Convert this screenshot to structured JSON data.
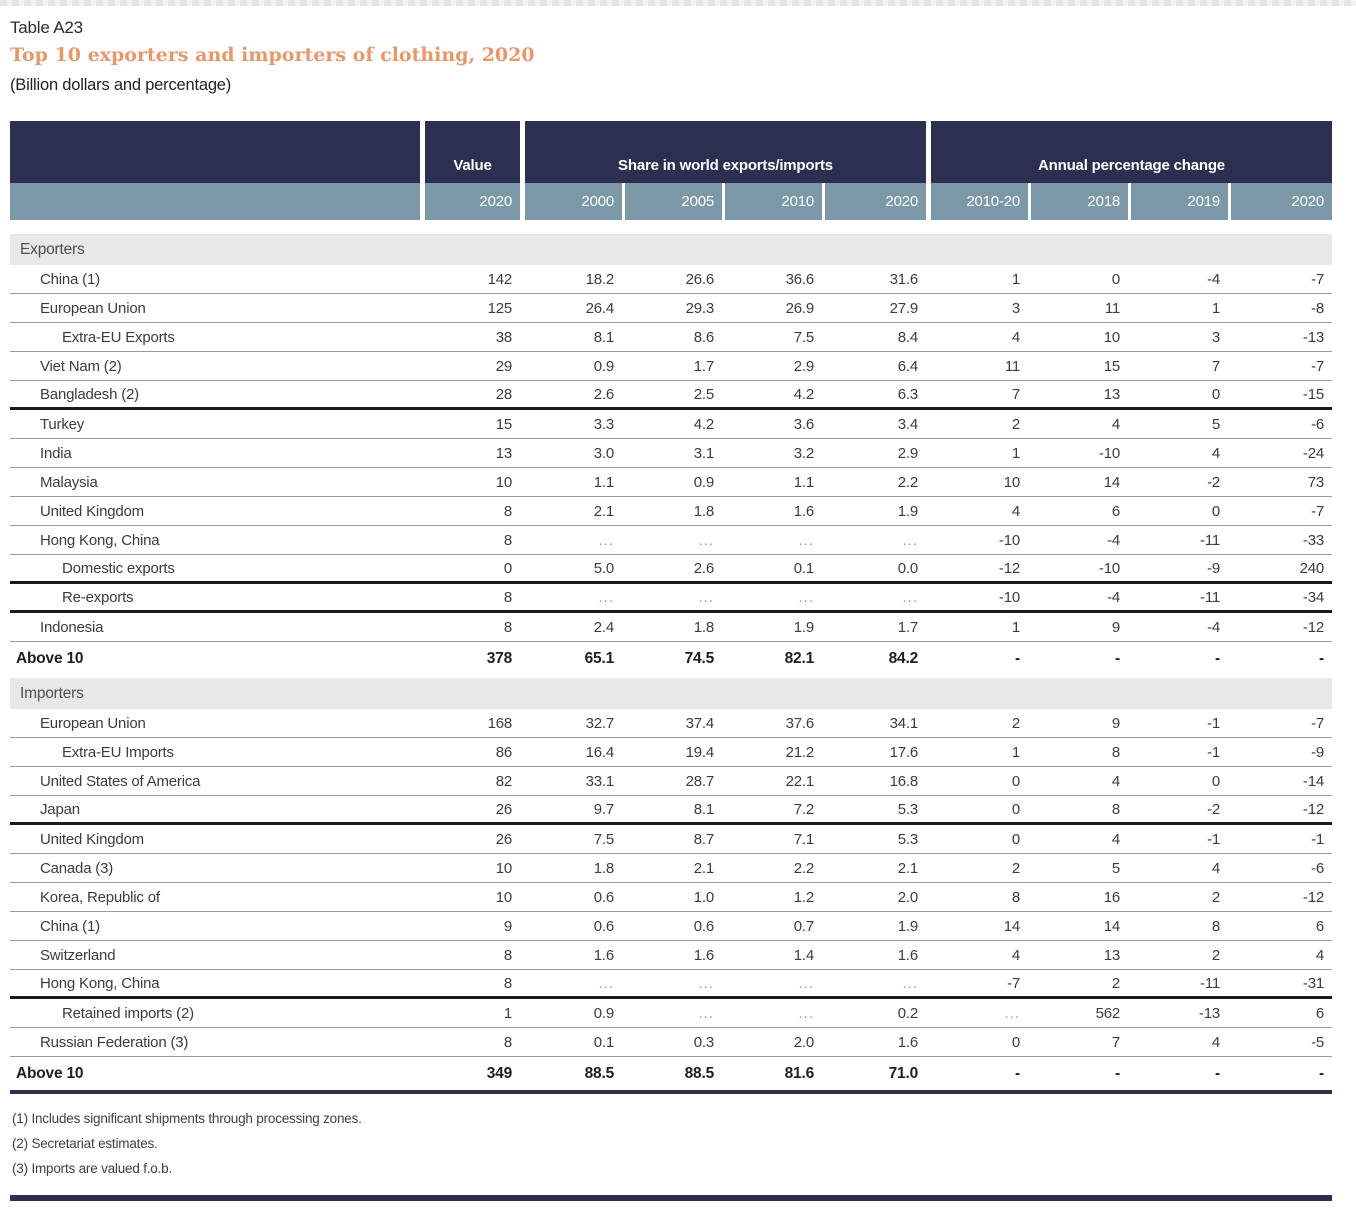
{
  "page": {
    "table_label": "Table A23",
    "title": "Top 10 exporters and importers of clothing, 2020",
    "subtitle": "(Billion dollars and percentage)"
  },
  "colors": {
    "header_navy": "#2c2f50",
    "year_band_blue": "#7c98a6",
    "title_orange": "#e6986d",
    "section_bar_gray": "#e8e8e8"
  },
  "table": {
    "header": {
      "value_label": "Value",
      "share_label": "Share in world exports/imports",
      "annual_label": "Annual percentage change",
      "value_year": "2020",
      "share_years": [
        "2000",
        "2005",
        "2010",
        "2020"
      ],
      "annual_years": [
        "2010-20",
        "2018",
        "2019",
        "2020"
      ]
    },
    "sections": [
      {
        "name": "Exporters",
        "rows": [
          {
            "label": "China (1)",
            "indent": "country",
            "values": [
              "142",
              "18.2",
              "26.6",
              "36.6",
              "31.6",
              "1",
              "0",
              "-4",
              "-7"
            ],
            "rule": "thin"
          },
          {
            "label": "European Union",
            "indent": "country",
            "values": [
              "125",
              "26.4",
              "29.3",
              "26.9",
              "27.9",
              "3",
              "11",
              "1",
              "-8"
            ],
            "rule": "thin"
          },
          {
            "label": "Extra-EU Exports",
            "indent": "sub",
            "values": [
              "38",
              "8.1",
              "8.6",
              "7.5",
              "8.4",
              "4",
              "10",
              "3",
              "-13"
            ],
            "rule": "thin"
          },
          {
            "label": "Viet Nam (2)",
            "indent": "country",
            "values": [
              "29",
              "0.9",
              "1.7",
              "2.9",
              "6.4",
              "11",
              "15",
              "7",
              "-7"
            ],
            "rule": "thin"
          },
          {
            "label": "Bangladesh (2)",
            "indent": "country",
            "values": [
              "28",
              "2.6",
              "2.5",
              "4.2",
              "6.3",
              "7",
              "13",
              "0",
              "-15"
            ],
            "rule": "thick"
          },
          {
            "label": "Turkey",
            "indent": "country",
            "values": [
              "15",
              "3.3",
              "4.2",
              "3.6",
              "3.4",
              "2",
              "4",
              "5",
              "-6"
            ],
            "rule": "thin"
          },
          {
            "label": "India",
            "indent": "country",
            "values": [
              "13",
              "3.0",
              "3.1",
              "3.2",
              "2.9",
              "1",
              "-10",
              "4",
              "-24"
            ],
            "rule": "thin"
          },
          {
            "label": "Malaysia",
            "indent": "country",
            "values": [
              "10",
              "1.1",
              "0.9",
              "1.1",
              "2.2",
              "10",
              "14",
              "-2",
              "73"
            ],
            "rule": "thin"
          },
          {
            "label": "United Kingdom",
            "indent": "country",
            "values": [
              "8",
              "2.1",
              "1.8",
              "1.6",
              "1.9",
              "4",
              "6",
              "0",
              "-7"
            ],
            "rule": "thin"
          },
          {
            "label": "Hong Kong, China",
            "indent": "country",
            "values": [
              "8",
              "...",
              "...",
              "...",
              "...",
              "-10",
              "-4",
              "-11",
              "-33"
            ],
            "rule": "thin"
          },
          {
            "label": "Domestic exports",
            "indent": "sub",
            "values": [
              "0",
              "5.0",
              "2.6",
              "0.1",
              "0.0",
              "-12",
              "-10",
              "-9",
              "240"
            ],
            "rule": "thick"
          },
          {
            "label": "Re-exports",
            "indent": "sub",
            "values": [
              "8",
              "...",
              "...",
              "...",
              "...",
              "-10",
              "-4",
              "-11",
              "-34"
            ],
            "rule": "thick"
          },
          {
            "label": "Indonesia",
            "indent": "country",
            "values": [
              "8",
              "2.4",
              "1.8",
              "1.9",
              "1.7",
              "1",
              "9",
              "-4",
              "-12"
            ],
            "rule": "thin"
          }
        ],
        "total_label": "Above 10",
        "total_values": [
          "378",
          "65.1",
          "74.5",
          "82.1",
          "84.2",
          "-",
          "-",
          "-",
          "-"
        ]
      },
      {
        "name": "Importers",
        "rows": [
          {
            "label": "European Union",
            "indent": "country",
            "values": [
              "168",
              "32.7",
              "37.4",
              "37.6",
              "34.1",
              "2",
              "9",
              "-1",
              "-7"
            ],
            "rule": "thin"
          },
          {
            "label": "Extra-EU Imports",
            "indent": "sub",
            "values": [
              "86",
              "16.4",
              "19.4",
              "21.2",
              "17.6",
              "1",
              "8",
              "-1",
              "-9"
            ],
            "rule": "thin"
          },
          {
            "label": "United States of America",
            "indent": "country",
            "values": [
              "82",
              "33.1",
              "28.7",
              "22.1",
              "16.8",
              "0",
              "4",
              "0",
              "-14"
            ],
            "rule": "thin"
          },
          {
            "label": "Japan",
            "indent": "country",
            "values": [
              "26",
              "9.7",
              "8.1",
              "7.2",
              "5.3",
              "0",
              "8",
              "-2",
              "-12"
            ],
            "rule": "thick"
          },
          {
            "label": "United Kingdom",
            "indent": "country",
            "values": [
              "26",
              "7.5",
              "8.7",
              "7.1",
              "5.3",
              "0",
              "4",
              "-1",
              "-1"
            ],
            "rule": "thin"
          },
          {
            "label": "Canada (3)",
            "indent": "country",
            "values": [
              "10",
              "1.8",
              "2.1",
              "2.2",
              "2.1",
              "2",
              "5",
              "4",
              "-6"
            ],
            "rule": "thin"
          },
          {
            "label": "Korea, Republic of",
            "indent": "country",
            "values": [
              "10",
              "0.6",
              "1.0",
              "1.2",
              "2.0",
              "8",
              "16",
              "2",
              "-12"
            ],
            "rule": "thin"
          },
          {
            "label": "China (1)",
            "indent": "country",
            "values": [
              "9",
              "0.6",
              "0.6",
              "0.7",
              "1.9",
              "14",
              "14",
              "8",
              "6"
            ],
            "rule": "thin"
          },
          {
            "label": "Switzerland",
            "indent": "country",
            "values": [
              "8",
              "1.6",
              "1.6",
              "1.4",
              "1.6",
              "4",
              "13",
              "2",
              "4"
            ],
            "rule": "thin"
          },
          {
            "label": "Hong Kong, China",
            "indent": "country",
            "values": [
              "8",
              "...",
              "...",
              "...",
              "...",
              "-7",
              "2",
              "-11",
              "-31"
            ],
            "rule": "thick"
          },
          {
            "label": "Retained imports (2)",
            "indent": "sub",
            "values": [
              "1",
              "0.9",
              "...",
              "...",
              "0.2",
              "...",
              "562",
              "-13",
              "6"
            ],
            "rule": "thin"
          },
          {
            "label": "Russian Federation (3)",
            "indent": "country",
            "values": [
              "8",
              "0.1",
              "0.3",
              "2.0",
              "1.6",
              "0",
              "7",
              "4",
              "-5"
            ],
            "rule": "thin"
          }
        ],
        "total_label": "Above 10",
        "total_values": [
          "349",
          "88.5",
          "88.5",
          "81.6",
          "71.0",
          "-",
          "-",
          "-",
          "-"
        ]
      }
    ],
    "footnotes": [
      "(1) Includes significant shipments through processing zones.",
      "(2) Secretariat estimates.",
      "(3) Imports are valued f.o.b."
    ]
  }
}
